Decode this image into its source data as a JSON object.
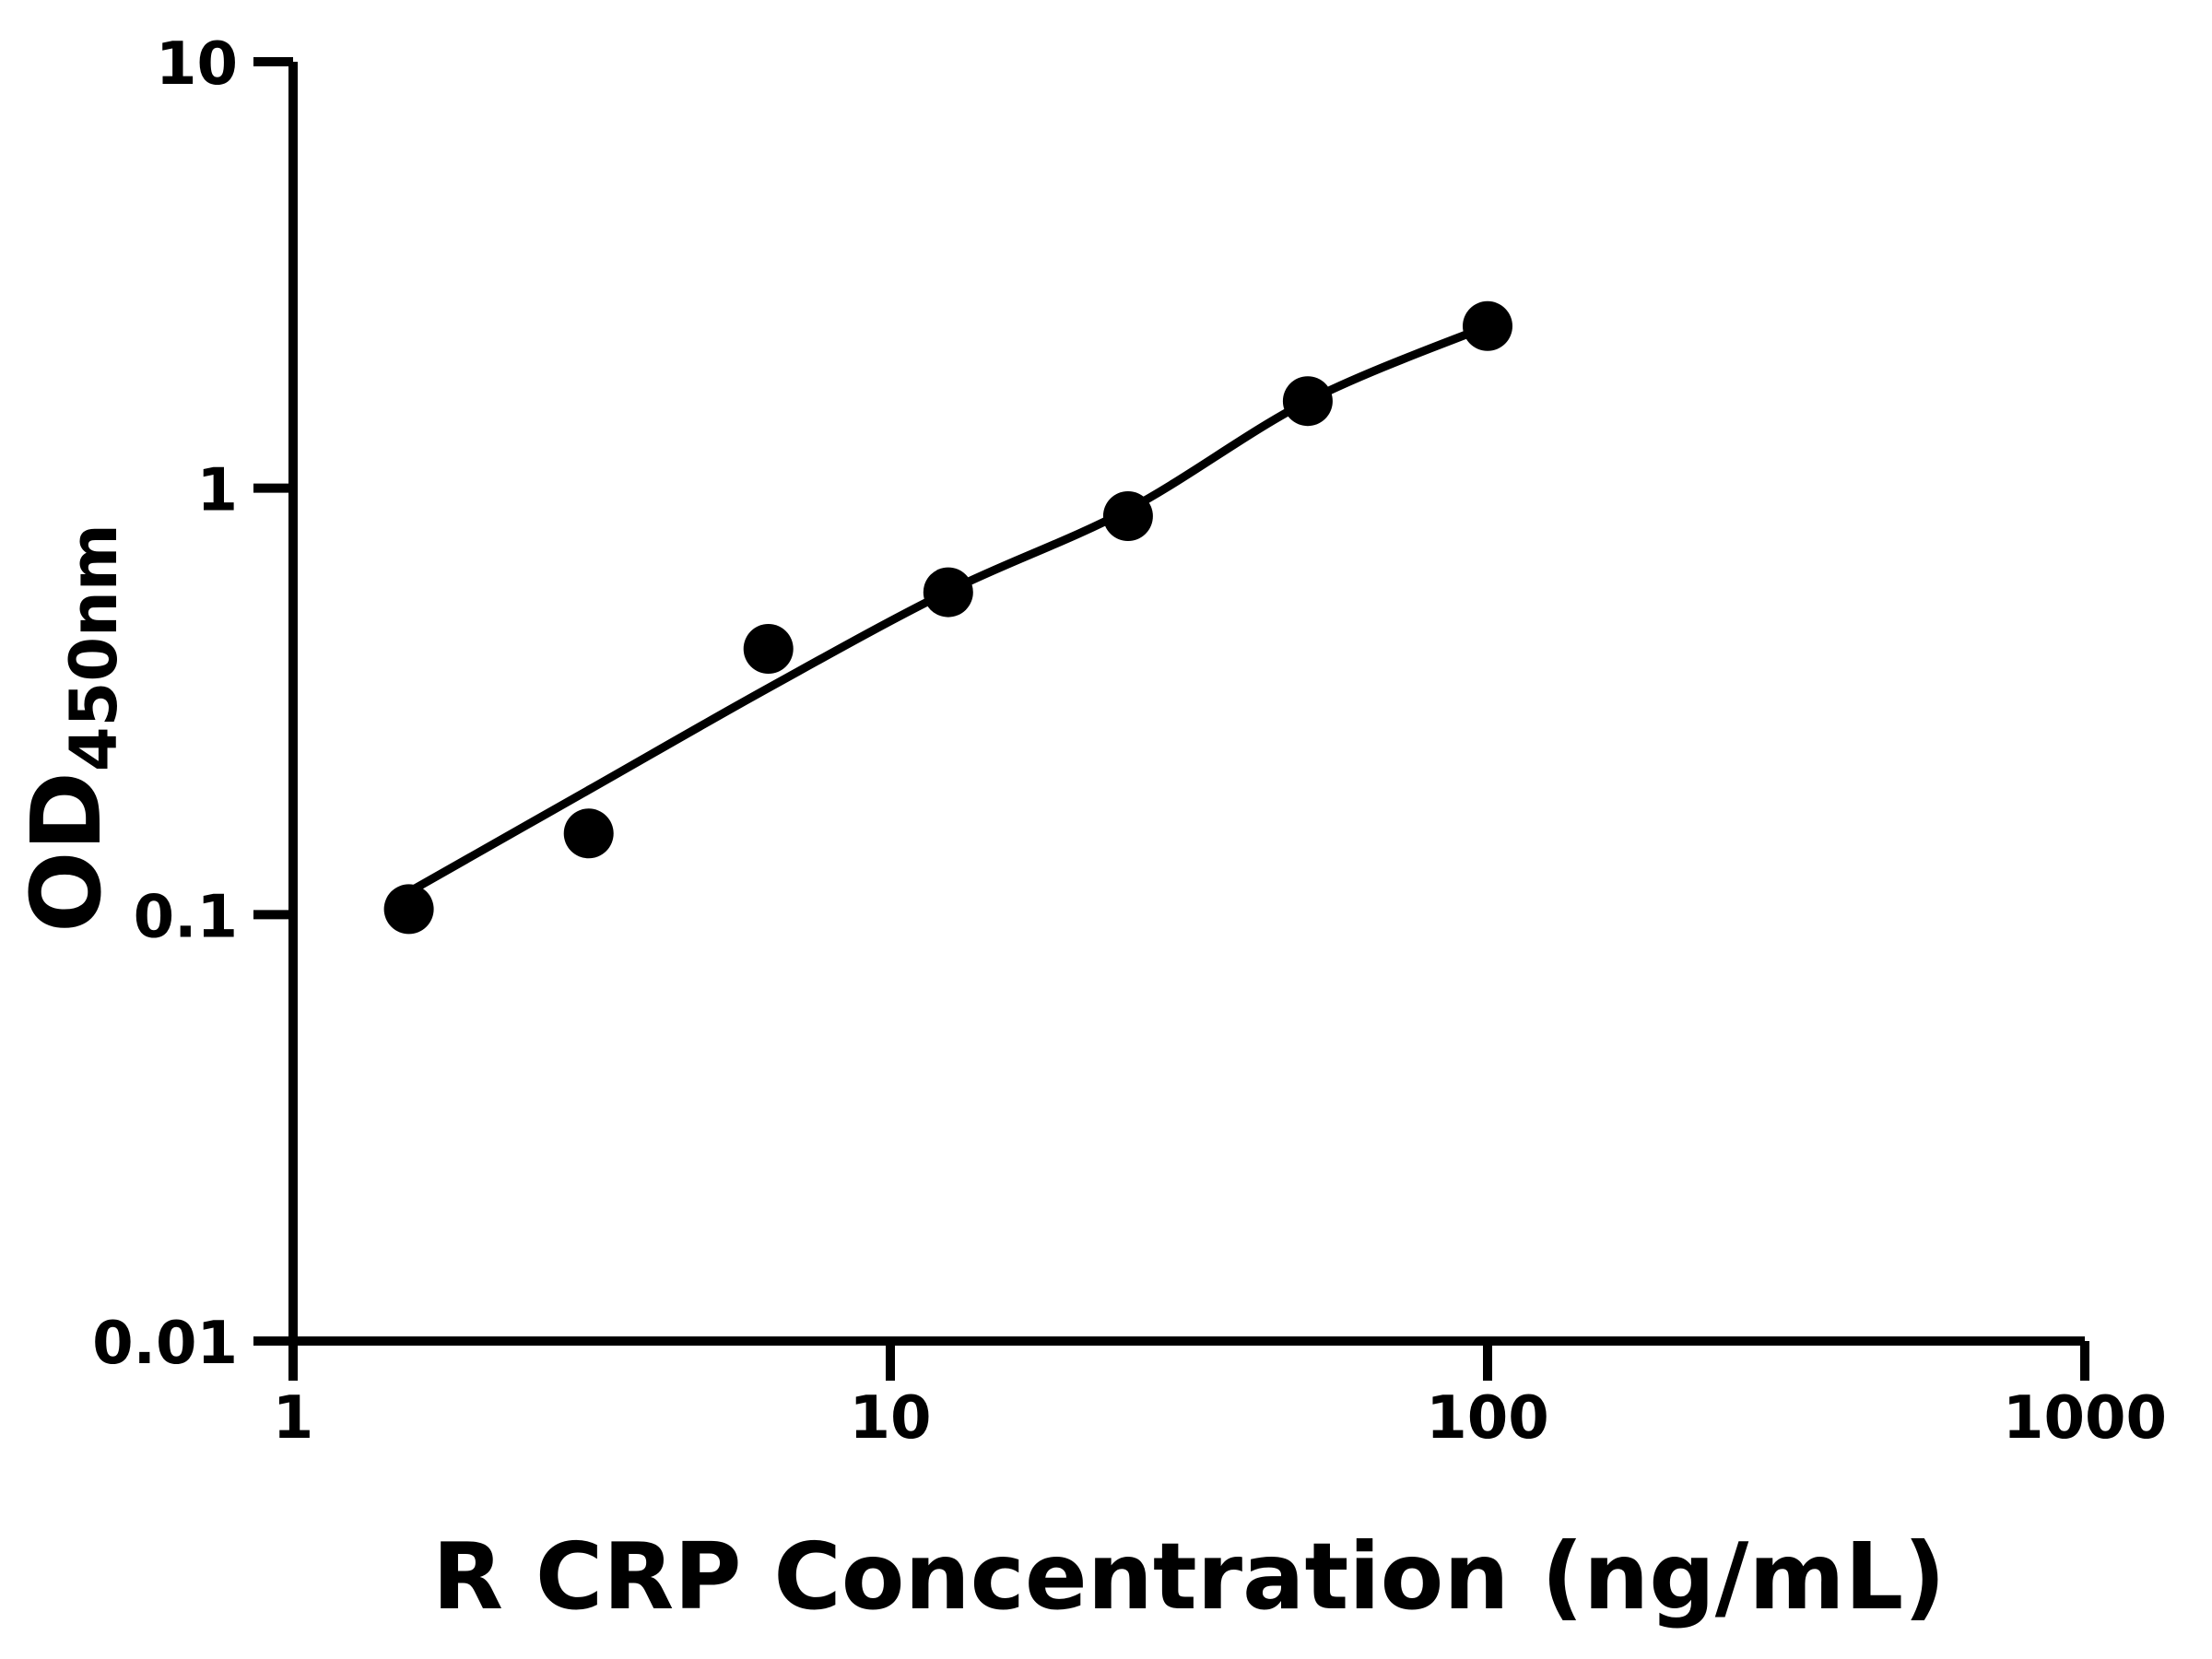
{
  "chart_data": {
    "type": "scatter",
    "subtype": "standard-curve-with-fit-line",
    "title": "",
    "xlabel": "R CRP Concentration (ng/mL)",
    "ylabel_main": "OD",
    "ylabel_sub": "450nm",
    "x_scale": "log",
    "y_scale": "log",
    "xlim": [
      1,
      1000
    ],
    "ylim": [
      0.01,
      10
    ],
    "grid": false,
    "x_ticks": [
      {
        "value": 1,
        "label": "1"
      },
      {
        "value": 10,
        "label": "10"
      },
      {
        "value": 100,
        "label": "100"
      },
      {
        "value": 1000,
        "label": "1000"
      }
    ],
    "y_ticks": [
      {
        "value": 10,
        "label": "10"
      },
      {
        "value": 1,
        "label": "1"
      },
      {
        "value": 0.1,
        "label": "0.1"
      },
      {
        "value": 0.01,
        "label": "0.01"
      }
    ],
    "points": [
      {
        "x": 1.5625,
        "y": 0.103
      },
      {
        "x": 3.125,
        "y": 0.155
      },
      {
        "x": 6.25,
        "y": 0.42
      },
      {
        "x": 12.5,
        "y": 0.57
      },
      {
        "x": 25,
        "y": 0.86
      },
      {
        "x": 50,
        "y": 1.6
      },
      {
        "x": 100,
        "y": 2.4
      }
    ],
    "fit_line": [
      {
        "x": 1.5625,
        "y": 0.113
      },
      {
        "x": 3.125,
        "y": 0.196
      },
      {
        "x": 6.25,
        "y": 0.34
      },
      {
        "x": 12.5,
        "y": 0.573
      },
      {
        "x": 25,
        "y": 0.89
      },
      {
        "x": 50,
        "y": 1.6
      },
      {
        "x": 100,
        "y": 2.4
      }
    ],
    "marker_color": "#000000",
    "line_color": "#000000",
    "axis_color": "#000000"
  }
}
